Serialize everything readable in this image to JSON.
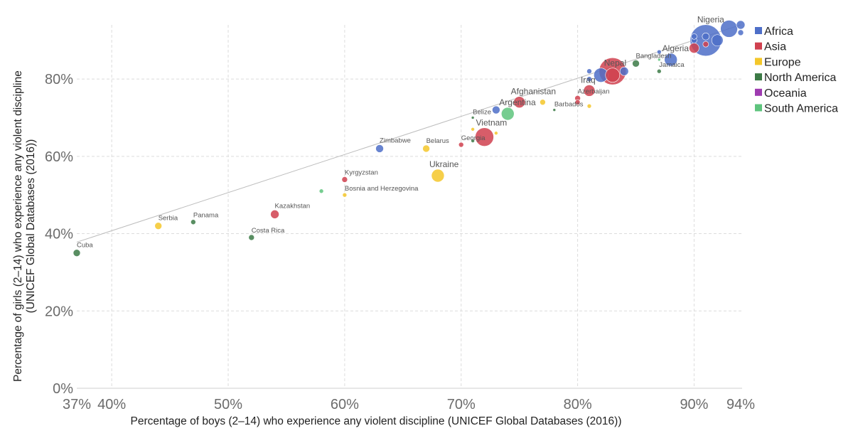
{
  "chart_data": {
    "type": "scatter",
    "xlabel": "Percentage of boys (2–14) who experience any violent discipline (UNICEF Global Databases (2016))",
    "ylabel_line1": "Percentage of girls (2–14) who experience any violent discipline",
    "ylabel_line2": "(UNICEF Global Databases (2016))",
    "xlim": [
      37,
      94
    ],
    "ylim": [
      0,
      94
    ],
    "x_ticks": [
      {
        "value": 37,
        "label": "37%"
      },
      {
        "value": 40,
        "label": "40%"
      },
      {
        "value": 50,
        "label": "50%"
      },
      {
        "value": 60,
        "label": "60%"
      },
      {
        "value": 70,
        "label": "70%"
      },
      {
        "value": 80,
        "label": "80%"
      },
      {
        "value": 90,
        "label": "90%"
      },
      {
        "value": 94,
        "label": "94%"
      }
    ],
    "y_ticks": [
      {
        "value": 0,
        "label": "0%"
      },
      {
        "value": 20,
        "label": "20%"
      },
      {
        "value": 40,
        "label": "40%"
      },
      {
        "value": 60,
        "label": "60%"
      },
      {
        "value": 80,
        "label": "80%"
      }
    ],
    "grid": true,
    "legend_position": "right",
    "legend": [
      {
        "name": "Africa",
        "color": "#4e6fc8"
      },
      {
        "name": "Asia",
        "color": "#d0414f"
      },
      {
        "name": "Europe",
        "color": "#f4c72a"
      },
      {
        "name": "North America",
        "color": "#3c7a46"
      },
      {
        "name": "Oceania",
        "color": "#9e3bb0"
      },
      {
        "name": "South America",
        "color": "#5ec47d"
      }
    ],
    "trendline": {
      "x": [
        37,
        94
      ],
      "y": [
        37.8,
        94
      ]
    },
    "points": [
      {
        "label": "Cuba",
        "x": 37,
        "y": 35,
        "region": "North America",
        "size": 5
      },
      {
        "label": "Serbia",
        "x": 44,
        "y": 42,
        "region": "Europe",
        "size": 5
      },
      {
        "label": "Panama",
        "x": 47,
        "y": 43,
        "region": "North America",
        "size": 3.5
      },
      {
        "label": "Costa Rica",
        "x": 52,
        "y": 39,
        "region": "North America",
        "size": 4
      },
      {
        "label": "Kazakhstan",
        "x": 54,
        "y": 45,
        "region": "Asia",
        "size": 6
      },
      {
        "label": "",
        "x": 58,
        "y": 51,
        "region": "South America",
        "size": 3
      },
      {
        "label": "Kyrgyzstan",
        "x": 60,
        "y": 54,
        "region": "Asia",
        "size": 4
      },
      {
        "label": "Bosnia and Herzegovina",
        "x": 60,
        "y": 50,
        "region": "Europe",
        "size": 3
      },
      {
        "label": "Zimbabwe",
        "x": 63,
        "y": 62,
        "region": "Africa",
        "size": 5.5
      },
      {
        "label": "Belarus",
        "x": 67,
        "y": 62,
        "region": "Europe",
        "size": 5
      },
      {
        "label": "Ukraine",
        "x": 68,
        "y": 55,
        "region": "Europe",
        "size": 9
      },
      {
        "label": "Georgia",
        "x": 70,
        "y": 63,
        "region": "Asia",
        "size": 3.5
      },
      {
        "label": "",
        "x": 71,
        "y": 64,
        "region": "North America",
        "size": 2.5
      },
      {
        "label": "",
        "x": 71,
        "y": 67,
        "region": "Europe",
        "size": 2.5
      },
      {
        "label": "Belize",
        "x": 71,
        "y": 70,
        "region": "North America",
        "size": 2
      },
      {
        "label": "Vietnam",
        "x": 72,
        "y": 65,
        "region": "Asia",
        "size": 13
      },
      {
        "label": "",
        "x": 73,
        "y": 66,
        "region": "Europe",
        "size": 2.5
      },
      {
        "label": "",
        "x": 73,
        "y": 72,
        "region": "Africa",
        "size": 5.5
      },
      {
        "label": "Argentina",
        "x": 74,
        "y": 71,
        "region": "South America",
        "size": 9
      },
      {
        "label": "Afghanistan",
        "x": 75,
        "y": 74,
        "region": "Asia",
        "size": 8
      },
      {
        "label": "",
        "x": 77,
        "y": 74,
        "region": "Europe",
        "size": 4
      },
      {
        "label": "Barbados",
        "x": 78,
        "y": 72,
        "region": "North America",
        "size": 2
      },
      {
        "label": "Azerbaijan",
        "x": 80,
        "y": 75,
        "region": "Asia",
        "size": 4
      },
      {
        "label": "",
        "x": 80,
        "y": 74,
        "region": "Asia",
        "size": 3.5
      },
      {
        "label": "Iraq",
        "x": 81,
        "y": 77,
        "region": "Asia",
        "size": 8
      },
      {
        "label": "",
        "x": 81,
        "y": 73,
        "region": "Europe",
        "size": 3
      },
      {
        "label": "",
        "x": 81,
        "y": 80,
        "region": "Africa",
        "size": 3.5
      },
      {
        "label": "",
        "x": 81,
        "y": 82,
        "region": "Africa",
        "size": 3.5
      },
      {
        "label": "",
        "x": 82,
        "y": 81,
        "region": "Africa",
        "size": 10
      },
      {
        "label": "Nepal",
        "x": 83,
        "y": 81,
        "region": "Asia",
        "size": 10
      },
      {
        "label": "",
        "x": 83,
        "y": 82,
        "region": "Asia",
        "size": 19
      },
      {
        "label": "",
        "x": 84,
        "y": 82,
        "region": "Africa",
        "size": 6
      },
      {
        "label": "Bangladesh",
        "x": 85,
        "y": 84,
        "region": "North America",
        "size": 5
      },
      {
        "label": "Jamaica",
        "x": 87,
        "y": 82,
        "region": "North America",
        "size": 3
      },
      {
        "label": "",
        "x": 87,
        "y": 85,
        "region": "South America",
        "size": 2
      },
      {
        "label": "",
        "x": 87,
        "y": 87,
        "region": "Africa",
        "size": 3
      },
      {
        "label": "Algeria",
        "x": 88,
        "y": 85,
        "region": "Africa",
        "size": 9
      },
      {
        "label": "",
        "x": 90,
        "y": 88,
        "region": "Asia",
        "size": 7
      },
      {
        "label": "",
        "x": 90,
        "y": 90,
        "region": "Africa",
        "size": 4
      },
      {
        "label": "",
        "x": 90,
        "y": 91,
        "region": "Africa",
        "size": 4
      },
      {
        "label": "",
        "x": 91,
        "y": 89,
        "region": "Asia",
        "size": 4
      },
      {
        "label": "Nigeria",
        "x": 91,
        "y": 90,
        "region": "Africa",
        "size": 22
      },
      {
        "label": "",
        "x": 91,
        "y": 91,
        "region": "Africa",
        "size": 5
      },
      {
        "label": "",
        "x": 92,
        "y": 90,
        "region": "Africa",
        "size": 8
      },
      {
        "label": "",
        "x": 93,
        "y": 93,
        "region": "Africa",
        "size": 12
      },
      {
        "label": "",
        "x": 94,
        "y": 94,
        "region": "Africa",
        "size": 6
      },
      {
        "label": "",
        "x": 94,
        "y": 92,
        "region": "Africa",
        "size": 4
      }
    ]
  }
}
